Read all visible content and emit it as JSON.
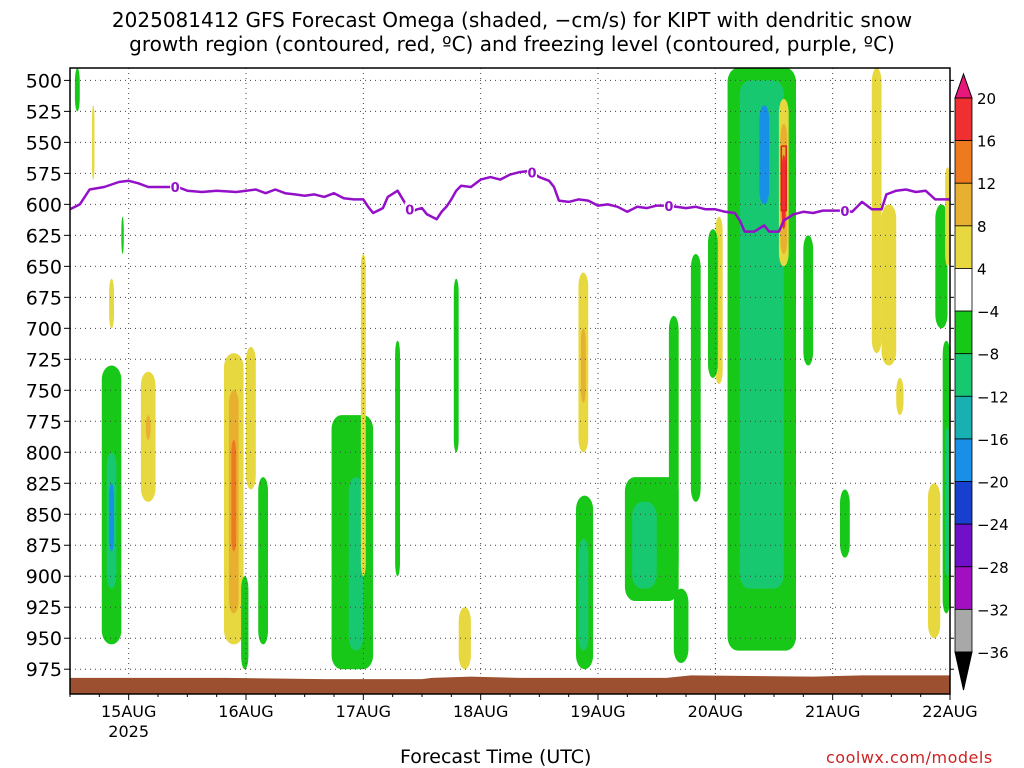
{
  "title": {
    "line1": "2025081412 GFS Forecast Omega (shaded, −cm/s) for KIPT with dendritic snow",
    "line2": "growth region (contoured, red, ºC) and freezing level (contoured, purple, ºC)"
  },
  "x_axis_title": "Forecast Time (UTC)",
  "credit": "coolwx.com/models",
  "chart_data": {
    "type": "heatmap",
    "variable": "Omega",
    "units": "-cm/s",
    "x_range_hours": [
      -12,
      168
    ],
    "y_range_hpa": [
      490,
      995
    ],
    "y_ticks": [
      500,
      525,
      550,
      575,
      600,
      625,
      650,
      675,
      700,
      725,
      750,
      775,
      800,
      825,
      850,
      875,
      900,
      925,
      950,
      975
    ],
    "x_ticks": [
      {
        "hour": 0,
        "label": "15AUG",
        "sublabel": "2025"
      },
      {
        "hour": 24,
        "label": "16AUG",
        "sublabel": ""
      },
      {
        "hour": 48,
        "label": "17AUG",
        "sublabel": ""
      },
      {
        "hour": 72,
        "label": "18AUG",
        "sublabel": ""
      },
      {
        "hour": 96,
        "label": "19AUG",
        "sublabel": ""
      },
      {
        "hour": 120,
        "label": "20AUG",
        "sublabel": ""
      },
      {
        "hour": 144,
        "label": "21AUG",
        "sublabel": ""
      },
      {
        "hour": 168,
        "label": "22AUG",
        "sublabel": ""
      }
    ],
    "grid": true,
    "colorbar": {
      "labels": [
        "20",
        "16",
        "12",
        "8",
        "4",
        "−4",
        "−8",
        "−12",
        "−16",
        "−20",
        "−24",
        "−28",
        "−32",
        "−36"
      ],
      "colors": [
        "#e8177a",
        "#f03030",
        "#ee7a20",
        "#e8b030",
        "#e8d840",
        "#ffffff",
        "#18c818",
        "#18c870",
        "#18b0b0",
        "#1890e8",
        "#1840d0",
        "#7010c8",
        "#a010c0",
        "#a8a8a8",
        "#000000"
      ]
    },
    "freezing_level": {
      "color": "#9410c8",
      "label": "0",
      "label_hours": [
        9.5,
        57.5,
        82.5,
        110.5,
        146.5
      ],
      "points": [
        [
          -12,
          604
        ],
        [
          -10,
          600
        ],
        [
          -8,
          588
        ],
        [
          -5,
          586
        ],
        [
          -2,
          582
        ],
        [
          0,
          581
        ],
        [
          2,
          583
        ],
        [
          4,
          586
        ],
        [
          7,
          586
        ],
        [
          10,
          586
        ],
        [
          12,
          589
        ],
        [
          15,
          590
        ],
        [
          18,
          589
        ],
        [
          22,
          590
        ],
        [
          26,
          588
        ],
        [
          28,
          591
        ],
        [
          30,
          588
        ],
        [
          32,
          591
        ],
        [
          34,
          592
        ],
        [
          36,
          593
        ],
        [
          38,
          592
        ],
        [
          40,
          594
        ],
        [
          42,
          591
        ],
        [
          44,
          595
        ],
        [
          46,
          596
        ],
        [
          48,
          596
        ],
        [
          49,
          602
        ],
        [
          50,
          607
        ],
        [
          52,
          603
        ],
        [
          53,
          594
        ],
        [
          55,
          589
        ],
        [
          57,
          602
        ],
        [
          58,
          606
        ],
        [
          59,
          604
        ],
        [
          60,
          603
        ],
        [
          61,
          608
        ],
        [
          62,
          610
        ],
        [
          63,
          612
        ],
        [
          64,
          606
        ],
        [
          65,
          602
        ],
        [
          66,
          596
        ],
        [
          67,
          589
        ],
        [
          68,
          585
        ],
        [
          70,
          586
        ],
        [
          72,
          580
        ],
        [
          74,
          578
        ],
        [
          76,
          580
        ],
        [
          78,
          576
        ],
        [
          80,
          574
        ],
        [
          82,
          573
        ],
        [
          84,
          578
        ],
        [
          86,
          581
        ],
        [
          87,
          586
        ],
        [
          88,
          597
        ],
        [
          90,
          598
        ],
        [
          92,
          596
        ],
        [
          94,
          597
        ],
        [
          96,
          601
        ],
        [
          98,
          600
        ],
        [
          100,
          602
        ],
        [
          102,
          606
        ],
        [
          104,
          602
        ],
        [
          106,
          603
        ],
        [
          108,
          601
        ],
        [
          110,
          601
        ],
        [
          112,
          602
        ],
        [
          114,
          603
        ],
        [
          116,
          602
        ],
        [
          118,
          604
        ],
        [
          120,
          604
        ],
        [
          122,
          606
        ],
        [
          124,
          607
        ],
        [
          125,
          613
        ],
        [
          126,
          622
        ],
        [
          128,
          622
        ],
        [
          130,
          617
        ],
        [
          131,
          622
        ],
        [
          133,
          622
        ],
        [
          134,
          613
        ],
        [
          136,
          608
        ],
        [
          138,
          606
        ],
        [
          140,
          607
        ],
        [
          142,
          605
        ],
        [
          144,
          605
        ],
        [
          146,
          605
        ],
        [
          148,
          606
        ],
        [
          150,
          598
        ],
        [
          152,
          604
        ],
        [
          154,
          604
        ],
        [
          155,
          592
        ],
        [
          157,
          589
        ],
        [
          159,
          588
        ],
        [
          161,
          590
        ],
        [
          163,
          589
        ],
        [
          165,
          596
        ],
        [
          167,
          596
        ],
        [
          168,
          596
        ]
      ]
    },
    "dendritic_region": {
      "color": "#e02020",
      "points": [
        [
          133.5,
          553
        ],
        [
          134.5,
          553
        ],
        [
          134.5,
          605
        ],
        [
          133.5,
          605
        ],
        [
          133.5,
          553
        ]
      ]
    },
    "terrain": {
      "color": "#9c5030",
      "points": [
        [
          -12,
          982
        ],
        [
          20,
          982
        ],
        [
          40,
          983
        ],
        [
          60,
          983
        ],
        [
          62,
          982
        ],
        [
          70,
          981
        ],
        [
          80,
          982
        ],
        [
          96,
          982
        ],
        [
          110,
          982
        ],
        [
          115,
          980
        ],
        [
          140,
          981
        ],
        [
          150,
          980
        ],
        [
          168,
          980
        ]
      ]
    },
    "shaded_regions": [
      {
        "color": "#18c818",
        "hours": [
          -11,
          -10
        ],
        "top": 490,
        "bottom": 525
      },
      {
        "color": "#e8d840",
        "hours": [
          -7.5,
          -7
        ],
        "top": 520,
        "bottom": 580
      },
      {
        "color": "#e8d840",
        "hours": [
          -4,
          -3
        ],
        "top": 660,
        "bottom": 700
      },
      {
        "color": "#18c818",
        "hours": [
          -1.5,
          -1
        ],
        "top": 610,
        "bottom": 640
      },
      {
        "color": "#e8d840",
        "hours": [
          2.5,
          5.5
        ],
        "top": 735,
        "bottom": 840
      },
      {
        "color": "#e8b030",
        "hours": [
          3.5,
          4.5
        ],
        "top": 770,
        "bottom": 790
      },
      {
        "color": "#18c818",
        "hours": [
          -5.5,
          -1.5
        ],
        "top": 730,
        "bottom": 955
      },
      {
        "color": "#18c870",
        "hours": [
          -4.5,
          -2.5
        ],
        "top": 800,
        "bottom": 910
      },
      {
        "color": "#1890e8",
        "hours": [
          -4,
          -3
        ],
        "top": 825,
        "bottom": 880
      },
      {
        "color": "#e8d840",
        "hours": [
          19.5,
          23.5
        ],
        "top": 720,
        "bottom": 955
      },
      {
        "color": "#e8b030",
        "hours": [
          20.5,
          22.5
        ],
        "top": 750,
        "bottom": 930
      },
      {
        "color": "#ee7a20",
        "hours": [
          21,
          22
        ],
        "top": 790,
        "bottom": 880
      },
      {
        "color": "#e8d840",
        "hours": [
          24,
          26
        ],
        "top": 715,
        "bottom": 830
      },
      {
        "color": "#18c818",
        "hours": [
          26.5,
          28.5
        ],
        "top": 820,
        "bottom": 955
      },
      {
        "color": "#18c818",
        "hours": [
          23,
          24.5
        ],
        "top": 900,
        "bottom": 975
      },
      {
        "color": "#18c818",
        "hours": [
          41.5,
          50
        ],
        "top": 770,
        "bottom": 975
      },
      {
        "color": "#18c870",
        "hours": [
          45,
          48
        ],
        "top": 820,
        "bottom": 960
      },
      {
        "color": "#e8d840",
        "hours": [
          47.5,
          48.5
        ],
        "top": 640,
        "bottom": 900
      },
      {
        "color": "#18c818",
        "hours": [
          54.5,
          55.5
        ],
        "top": 710,
        "bottom": 900
      },
      {
        "color": "#18c818",
        "hours": [
          66.5,
          67.5
        ],
        "top": 660,
        "bottom": 800
      },
      {
        "color": "#e8d840",
        "hours": [
          67.5,
          70
        ],
        "top": 925,
        "bottom": 975
      },
      {
        "color": "#e8d840",
        "hours": [
          92,
          94
        ],
        "top": 655,
        "bottom": 800
      },
      {
        "color": "#e8b030",
        "hours": [
          92.5,
          93.5
        ],
        "top": 700,
        "bottom": 760
      },
      {
        "color": "#18c818",
        "hours": [
          91.5,
          95
        ],
        "top": 835,
        "bottom": 975
      },
      {
        "color": "#18c870",
        "hours": [
          92,
          94
        ],
        "top": 870,
        "bottom": 960
      },
      {
        "color": "#18c818",
        "hours": [
          101.5,
          112.5
        ],
        "top": 820,
        "bottom": 920
      },
      {
        "color": "#18c870",
        "hours": [
          103,
          108
        ],
        "top": 840,
        "bottom": 910
      },
      {
        "color": "#18c818",
        "hours": [
          110.5,
          112.5
        ],
        "top": 690,
        "bottom": 900
      },
      {
        "color": "#18c818",
        "hours": [
          111.5,
          114.5
        ],
        "top": 910,
        "bottom": 970
      },
      {
        "color": "#18c818",
        "hours": [
          115,
          117
        ],
        "top": 640,
        "bottom": 840
      },
      {
        "color": "#e8d840",
        "hours": [
          120,
          121.5
        ],
        "top": 610,
        "bottom": 745
      },
      {
        "color": "#18c818",
        "hours": [
          118.5,
          120.5
        ],
        "top": 620,
        "bottom": 740
      },
      {
        "color": "#18c818",
        "hours": [
          122.5,
          136.5
        ],
        "top": 490,
        "bottom": 960
      },
      {
        "color": "#18c870",
        "hours": [
          125,
          134
        ],
        "top": 500,
        "bottom": 910
      },
      {
        "color": "#1890e8",
        "hours": [
          129,
          131
        ],
        "top": 520,
        "bottom": 600
      },
      {
        "color": "#e8d840",
        "hours": [
          133,
          135
        ],
        "top": 515,
        "bottom": 650
      },
      {
        "color": "#e8b030",
        "hours": [
          133.3,
          134.7
        ],
        "top": 535,
        "bottom": 640
      },
      {
        "color": "#f03030",
        "hours": [
          133.6,
          134.4
        ],
        "top": 560,
        "bottom": 620
      },
      {
        "color": "#18c818",
        "hours": [
          138,
          140
        ],
        "top": 625,
        "bottom": 730
      },
      {
        "color": "#18c818",
        "hours": [
          145.5,
          147.5
        ],
        "top": 830,
        "bottom": 885
      },
      {
        "color": "#e8d840",
        "hours": [
          152,
          154
        ],
        "top": 490,
        "bottom": 720
      },
      {
        "color": "#e8d840",
        "hours": [
          154,
          157
        ],
        "top": 600,
        "bottom": 730
      },
      {
        "color": "#e8d840",
        "hours": [
          157,
          158.5
        ],
        "top": 740,
        "bottom": 770
      },
      {
        "color": "#e8d840",
        "hours": [
          163.5,
          166
        ],
        "top": 825,
        "bottom": 950
      },
      {
        "color": "#18c818",
        "hours": [
          165,
          167.5
        ],
        "top": 600,
        "bottom": 700
      },
      {
        "color": "#18c818",
        "hours": [
          166.5,
          168
        ],
        "top": 710,
        "bottom": 930
      },
      {
        "color": "#18c870",
        "hours": [
          167,
          168
        ],
        "top": 780,
        "bottom": 900
      },
      {
        "color": "#e8d840",
        "hours": [
          167,
          168
        ],
        "top": 570,
        "bottom": 650
      }
    ]
  }
}
